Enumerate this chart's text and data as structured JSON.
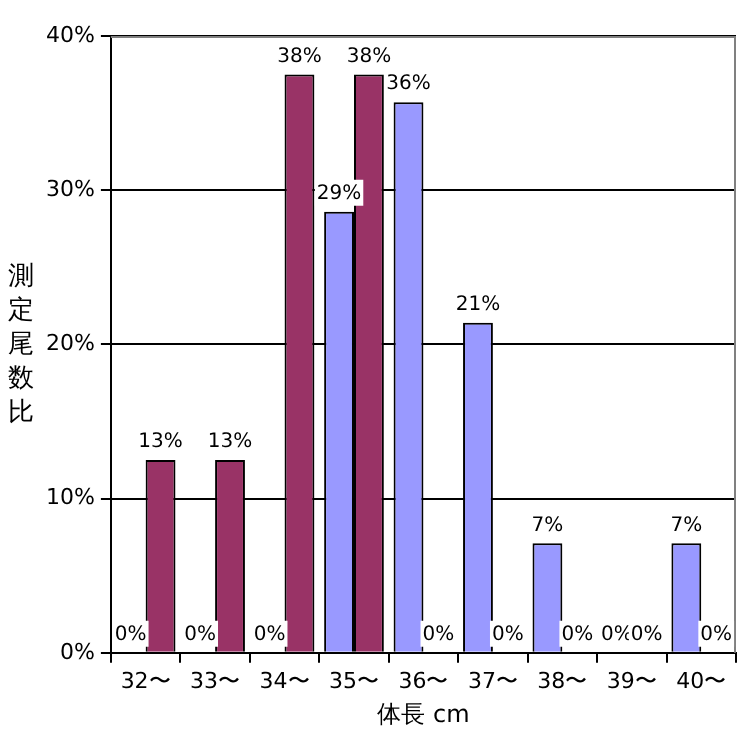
{
  "chart_data": {
    "type": "bar",
    "xlabel": "体長 cm",
    "ylabel": "測定尾数比",
    "categories": [
      "32〜",
      "33〜",
      "34〜",
      "35〜",
      "36〜",
      "37〜",
      "38〜",
      "39〜",
      "40〜"
    ],
    "series": [
      {
        "color": "#9999ff",
        "values": [
          0,
          0,
          0,
          28.6,
          35.7,
          21.4,
          7.1,
          0,
          7.1
        ],
        "value_labels": [
          "0%",
          "0%",
          "0%",
          "29%",
          "36%",
          "21%",
          "7%",
          "0%",
          "7%"
        ]
      },
      {
        "color": "#993366",
        "values": [
          12.5,
          12.5,
          37.5,
          37.5,
          0,
          0,
          0,
          0,
          0
        ],
        "value_labels": [
          "13%",
          "13%",
          "38%",
          "38%",
          "0%",
          "0%",
          "0%",
          "0%",
          "0%"
        ]
      }
    ],
    "ylim": [
      0,
      40
    ],
    "yticks": [
      {
        "value": 0,
        "label": "0%"
      },
      {
        "value": 10,
        "label": "10%"
      },
      {
        "value": 20,
        "label": "20%"
      },
      {
        "value": 30,
        "label": "30%"
      },
      {
        "value": 40,
        "label": "40%"
      }
    ],
    "grid": "y",
    "legend": false
  }
}
